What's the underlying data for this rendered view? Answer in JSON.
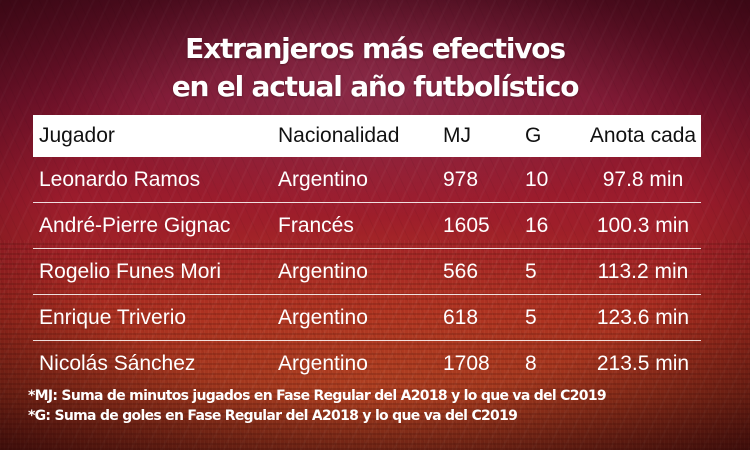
{
  "title": {
    "line1": "Extranjeros más efectivos",
    "line2": "en el actual año futbolístico"
  },
  "table": {
    "headers": [
      "Jugador",
      "Nacionalidad",
      "MJ",
      "G",
      "Anota cada"
    ],
    "rows": [
      [
        "Leonardo Ramos",
        "Argentino",
        "978",
        "10",
        "97.8 min"
      ],
      [
        "André-Pierre Gignac",
        "Francés",
        "1605",
        "16",
        "100.3 min"
      ],
      [
        "Rogelio Funes Mori",
        "Argentino",
        "566",
        "5",
        "113.2 min"
      ],
      [
        "Enrique Triverio",
        "Argentino",
        "618",
        "5",
        "123.6 min"
      ],
      [
        "Nicolás Sánchez",
        "Argentino",
        "1708",
        "8",
        "213.5 min"
      ]
    ]
  },
  "notes": [
    "*MJ: Suma de minutos jugados en Fase Regular del A2018 y lo que va del C2019",
    "*G: Suma de goles en Fase Regular del A2018 y lo que va del C2019"
  ],
  "colors": {
    "background_top": "#5c1026",
    "background_mid": "#9c1c2c",
    "background_bottom": "#8a2a18",
    "header_bg": "#ffffff",
    "header_text": "#111111",
    "text": "#ffffff"
  }
}
